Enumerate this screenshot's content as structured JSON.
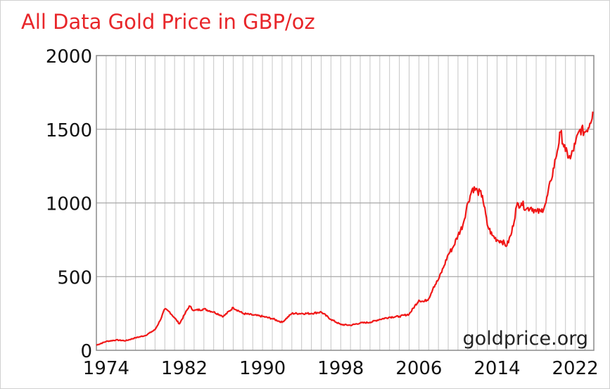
{
  "chart_data": {
    "type": "line",
    "title": "All Data Gold Price in GBP/oz",
    "xlabel": "",
    "ylabel": "",
    "xlim": [
      1973,
      2023.9
    ],
    "ylim": [
      0,
      2000
    ],
    "yticks": [
      "0",
      "500",
      "1000",
      "1500",
      "2000"
    ],
    "xticks": [
      "1974",
      "1982",
      "1990",
      "1998",
      "2006",
      "2014",
      "2022"
    ],
    "grid": true,
    "legend": "none",
    "series_color": "#f01818",
    "watermark": "goldprice.org",
    "series": [
      {
        "x": [
          1973,
          1974,
          1975,
          1976,
          1977,
          1978,
          1979,
          1979.5,
          1980,
          1980.5,
          1981,
          1981.5,
          1982,
          1982.5,
          1983,
          1984,
          1985,
          1986,
          1987,
          1988,
          1989,
          1990,
          1991,
          1992,
          1993,
          1994,
          1995,
          1996,
          1997,
          1998,
          1999,
          2000,
          2001,
          2002,
          2003,
          2004,
          2005,
          2006,
          2006.5,
          2007,
          2007.5,
          2008,
          2008.5,
          2009,
          2009.5,
          2010,
          2010.5,
          2011,
          2011.5,
          2012,
          2012.5,
          2013,
          2013.5,
          2014,
          2014.5,
          2015,
          2015.5,
          2016,
          2016.5,
          2017,
          2017.5,
          2018,
          2018.5,
          2019,
          2019.5,
          2020,
          2020.5,
          2021,
          2021.5,
          2022,
          2022.5,
          2023,
          2023.5,
          2023.8
        ],
        "y": [
          35,
          60,
          70,
          65,
          85,
          100,
          140,
          200,
          280,
          260,
          220,
          180,
          240,
          300,
          270,
          280,
          260,
          230,
          290,
          250,
          240,
          230,
          215,
          190,
          250,
          250,
          250,
          260,
          210,
          175,
          170,
          185,
          190,
          210,
          225,
          230,
          245,
          340,
          330,
          350,
          430,
          480,
          560,
          650,
          700,
          780,
          850,
          1000,
          1100,
          1080,
          1050,
          850,
          780,
          750,
          740,
          710,
          800,
          980,
          1000,
          960,
          970,
          940,
          940,
          1000,
          1150,
          1300,
          1480,
          1350,
          1300,
          1400,
          1500,
          1480,
          1540,
          1620
        ]
      }
    ]
  }
}
